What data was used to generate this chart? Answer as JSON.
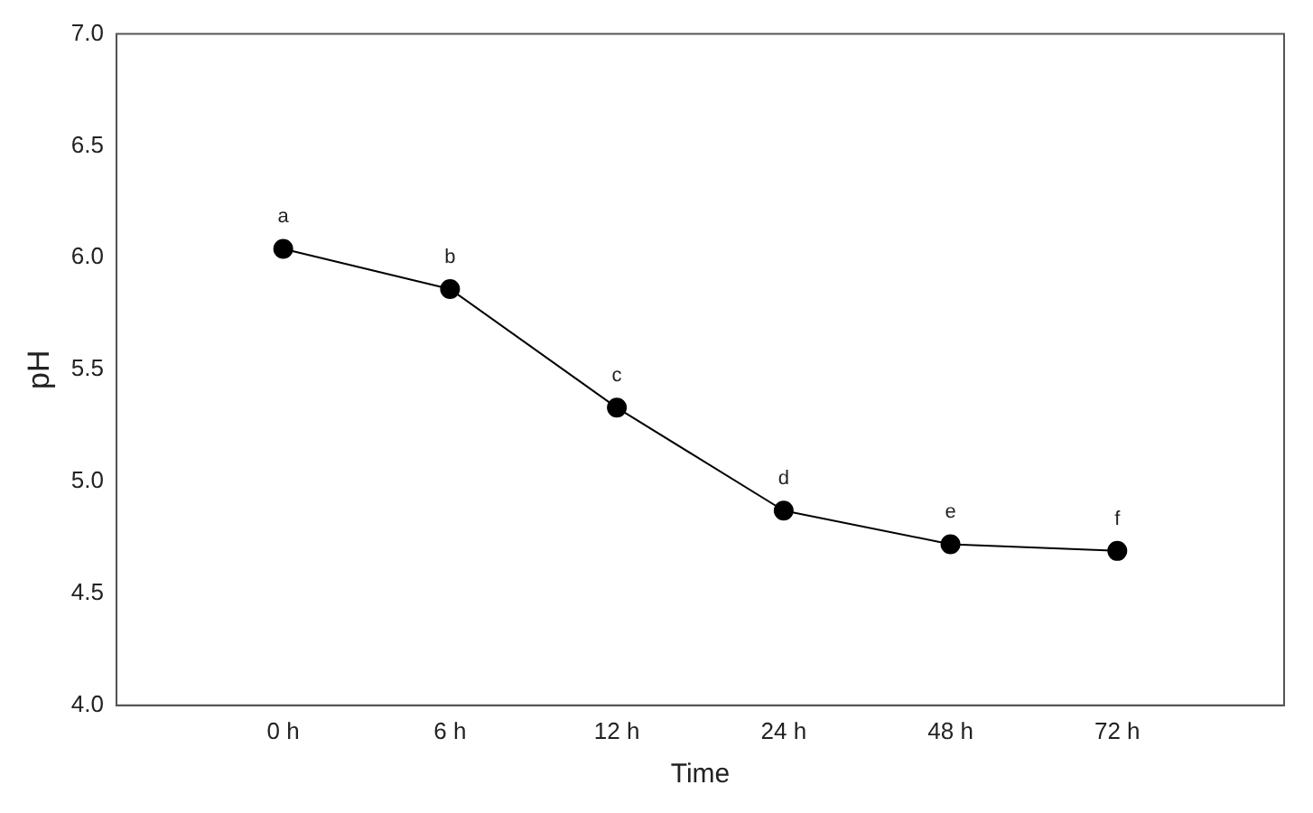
{
  "chart_data": {
    "type": "line",
    "xlabel": "Time",
    "ylabel": "pH",
    "categories": [
      "0 h",
      "6 h",
      "12 h",
      "24 h",
      "48 h",
      "72 h"
    ],
    "series": [
      {
        "color": "#000000",
        "values": [
          6.04,
          5.86,
          5.33,
          4.87,
          4.72,
          4.69
        ]
      }
    ],
    "ylim": [
      4.0,
      7.0
    ],
    "yticks": [
      {
        "value": 4.0,
        "label": "4.0"
      },
      {
        "value": 4.5,
        "label": "4.5"
      },
      {
        "value": 5.0,
        "label": "5.0"
      },
      {
        "value": 5.5,
        "label": "5.5"
      },
      {
        "value": 6.0,
        "label": "6.0"
      },
      {
        "value": 6.5,
        "label": "6.5"
      },
      {
        "value": 7.0,
        "label": "7.0"
      }
    ],
    "grid": false,
    "legend": false,
    "marker": "circle",
    "line_style": "solid",
    "annotations": [
      {
        "text": "a",
        "x": "0 h",
        "y": 6.04
      },
      {
        "text": "b",
        "x": "6 h",
        "y": 5.86
      },
      {
        "text": "c",
        "x": "12 h",
        "y": 5.33
      },
      {
        "text": "d",
        "x": "24 h",
        "y": 4.87
      },
      {
        "text": "e",
        "x": "48 h",
        "y": 4.72
      },
      {
        "text": "f",
        "x": "72 h",
        "y": 4.69
      }
    ]
  }
}
